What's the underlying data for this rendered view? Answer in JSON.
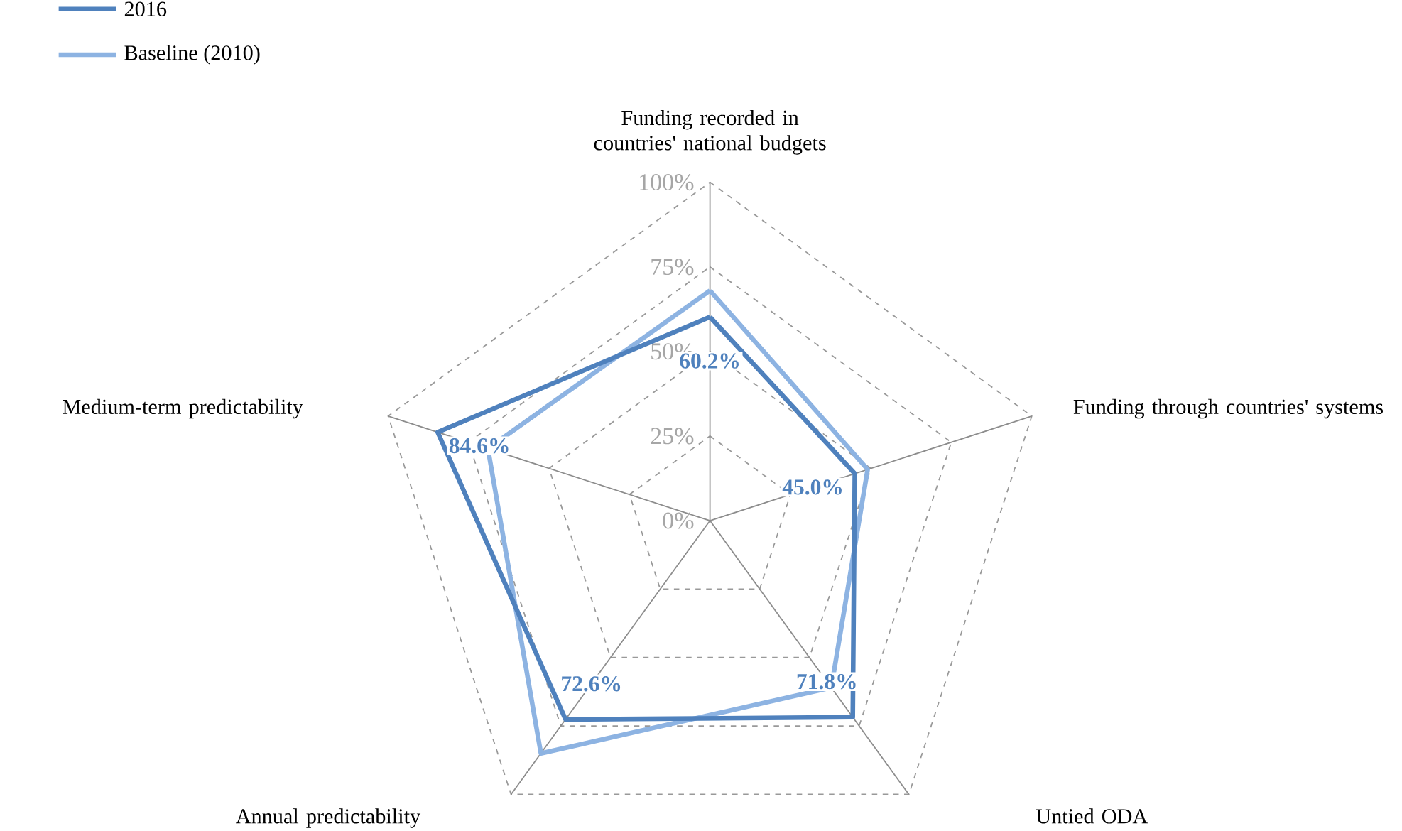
{
  "chart_data": {
    "type": "radar",
    "categories": [
      "Funding recorded in countries' national budgets",
      "Funding  through countries' systems",
      "Untied ODA",
      "Annual predictability",
      "Medium-term predictability"
    ],
    "series": [
      {
        "name": "2016",
        "color": "#4f81bd",
        "values": [
          60.2,
          45.0,
          71.8,
          72.6,
          84.6
        ],
        "value_labels": [
          "60.2%",
          "45.0%",
          "71.8%",
          "72.6%",
          "84.6%"
        ]
      },
      {
        "name": "Baseline (2010)",
        "color": "#8db3e2",
        "values": [
          68,
          49,
          61,
          85,
          69
        ]
      }
    ],
    "ylim": [
      0,
      100
    ],
    "yticks": [
      {
        "value": 0,
        "label": "0%"
      },
      {
        "value": 25,
        "label": "25%"
      },
      {
        "value": 50,
        "label": "50%"
      },
      {
        "value": 75,
        "label": "75%"
      },
      {
        "value": 100,
        "label": "100%"
      }
    ],
    "grid": true,
    "legend": "top left"
  }
}
